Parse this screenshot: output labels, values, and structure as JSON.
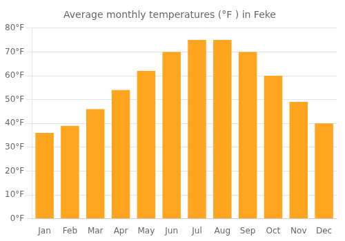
{
  "chart_data": {
    "type": "bar",
    "title": "Average monthly temperatures (°F ) in Feke",
    "categories": [
      "Jan",
      "Feb",
      "Mar",
      "Apr",
      "May",
      "Jun",
      "Jul",
      "Aug",
      "Sep",
      "Oct",
      "Nov",
      "Dec"
    ],
    "values": [
      36,
      39,
      46,
      54,
      62,
      70,
      75,
      75,
      70,
      60,
      49,
      40
    ],
    "color": "#FFA520",
    "ylim": [
      0,
      80
    ],
    "yticks": [
      {
        "value": 0,
        "label": "0°F"
      },
      {
        "value": 10,
        "label": "10°F"
      },
      {
        "value": 20,
        "label": "20°F"
      },
      {
        "value": 30,
        "label": "30°F"
      },
      {
        "value": 40,
        "label": "40°F"
      },
      {
        "value": 50,
        "label": "50°F"
      },
      {
        "value": 60,
        "label": "60°F"
      },
      {
        "value": 70,
        "label": "70°F"
      },
      {
        "value": 80,
        "label": "80°F"
      }
    ],
    "grid": true
  }
}
